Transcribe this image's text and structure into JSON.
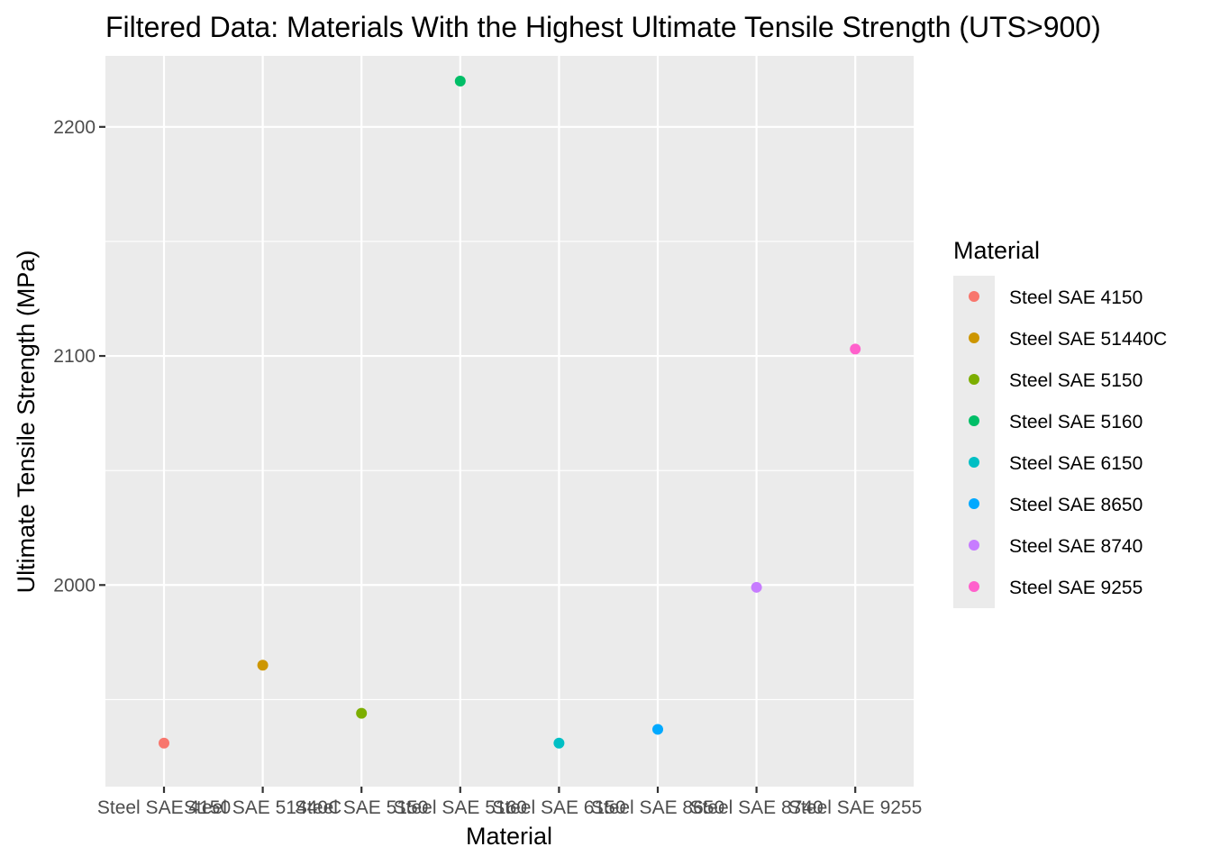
{
  "chart_data": {
    "type": "scatter",
    "title": "Filtered Data: Materials With the Highest Ultimate Tensile Strength (UTS>900)",
    "xlabel": "Material",
    "ylabel": "Ultimate Tensile Strength (MPa)",
    "categories": [
      "Steel SAE 4150",
      "Steel SAE 51440C",
      "Steel SAE 5150",
      "Steel SAE 5160",
      "Steel SAE 6150",
      "Steel SAE 8650",
      "Steel SAE 8740",
      "Steel SAE 9255"
    ],
    "values": [
      1931,
      1965,
      1944,
      2220,
      1931,
      1937,
      1999,
      2103
    ],
    "colors": [
      "#F8766D",
      "#CD9600",
      "#7CAE00",
      "#00BE67",
      "#00BFC4",
      "#00A9FF",
      "#C77CFF",
      "#FF61CC"
    ],
    "ylim": [
      1912,
      2231
    ],
    "yticks": [
      2000,
      2100,
      2200
    ],
    "yticks_minor": [
      1950,
      2050,
      2150
    ],
    "grid": true,
    "panel_background": "#EBEBEB",
    "legend": {
      "title": "Material",
      "position": "right",
      "entries": [
        "Steel SAE 4150",
        "Steel SAE 51440C",
        "Steel SAE 5150",
        "Steel SAE 5160",
        "Steel SAE 6150",
        "Steel SAE 8650",
        "Steel SAE 8740",
        "Steel SAE 9255"
      ]
    }
  }
}
